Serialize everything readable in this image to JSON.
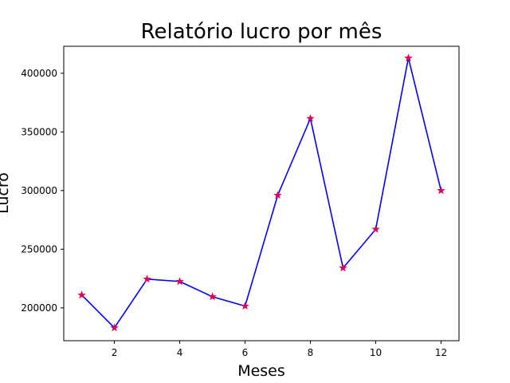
{
  "chart_data": {
    "type": "line",
    "title": "Relatório lucro por mês",
    "xlabel": "Meses",
    "ylabel": "Lucro",
    "x": [
      1,
      2,
      3,
      4,
      5,
      6,
      7,
      8,
      9,
      10,
      11,
      12
    ],
    "x_ticks": [
      2,
      4,
      6,
      8,
      10,
      12
    ],
    "y_ticks": [
      200000,
      250000,
      300000,
      350000,
      400000
    ],
    "xlim": [
      0.45,
      12.55
    ],
    "ylim": [
      172000,
      423000
    ],
    "series": [
      {
        "values": [
          211000,
          183000,
          224500,
          222500,
          209500,
          201500,
          296000,
          361500,
          234000,
          267000,
          413000,
          300000
        ],
        "line_color": "#0000ff",
        "marker": "star",
        "marker_color": "#e0005a"
      }
    ],
    "grid": false,
    "legend": "none"
  }
}
